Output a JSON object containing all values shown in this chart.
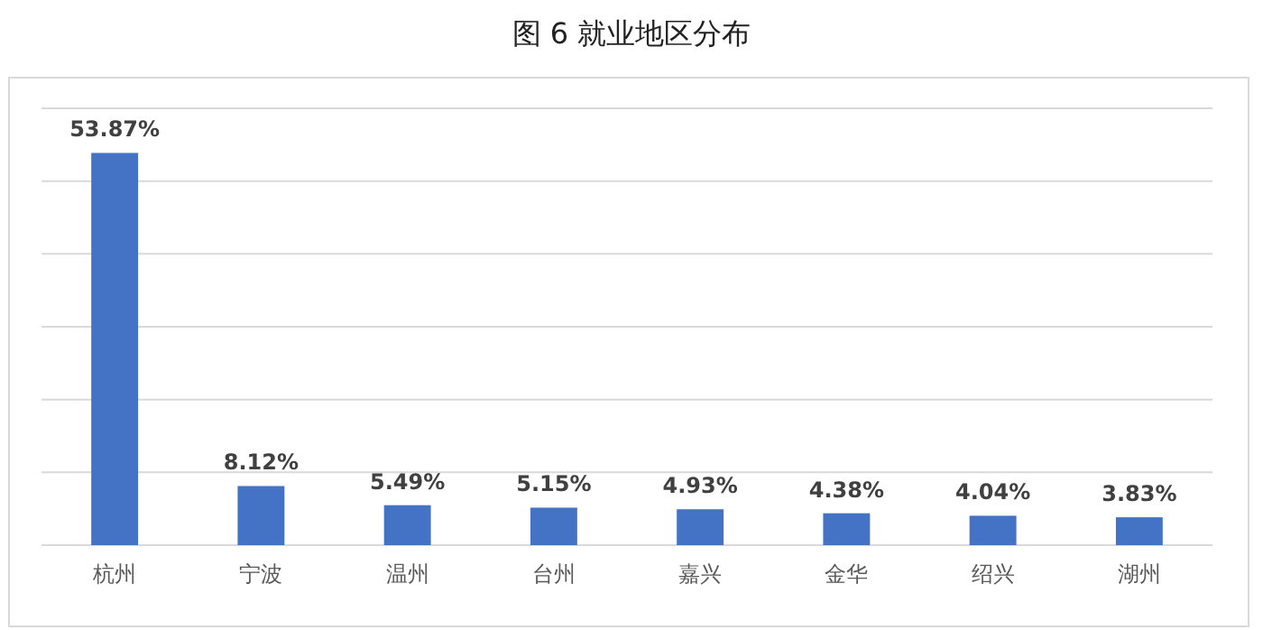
{
  "chart_data": {
    "type": "bar",
    "title": "图 6 就业地区分布",
    "categories": [
      "杭州",
      "宁波",
      "温州",
      "台州",
      "嘉兴",
      "金华",
      "绍兴",
      "湖州"
    ],
    "values": [
      53.87,
      8.12,
      5.49,
      5.15,
      4.93,
      4.38,
      4.04,
      3.83
    ],
    "value_labels": [
      "53.87%",
      "8.12%",
      "5.49%",
      "5.15%",
      "4.93%",
      "4.38%",
      "4.04%",
      "3.83%"
    ],
    "color": "#4472c4",
    "ylim": [
      0,
      60
    ],
    "yticks": [
      {
        "value": 0,
        "label": null
      },
      {
        "value": 10,
        "label": null
      },
      {
        "value": 20,
        "label": null
      },
      {
        "value": 30,
        "label": null
      },
      {
        "value": 40,
        "label": null
      },
      {
        "value": 50,
        "label": null
      },
      {
        "value": 60,
        "label": null
      }
    ],
    "grid": "y",
    "tick_labels": "x"
  }
}
